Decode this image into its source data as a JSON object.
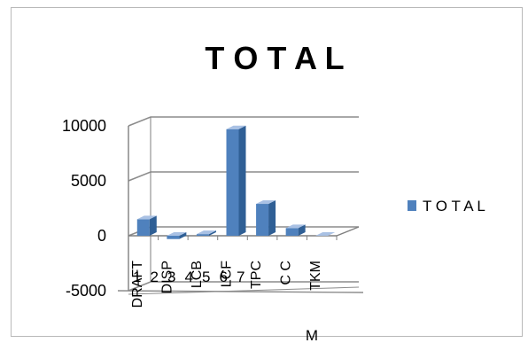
{
  "chart_data": {
    "type": "bar",
    "title": "T O T A L",
    "xlabel": "M",
    "ylabel": "",
    "ylim": [
      -5000,
      10000
    ],
    "yticks": [
      10000,
      5000,
      0,
      -5000
    ],
    "index_labels": [
      "1",
      "2",
      "3",
      "4",
      "5",
      "6",
      "7"
    ],
    "categories": [
      "DRAFT",
      "DISP",
      "LCB",
      "LCF",
      "TPC",
      "C C",
      "TKM"
    ],
    "series": [
      {
        "name": "T O T A L",
        "values": [
          1500,
          -300,
          150,
          9700,
          2900,
          700,
          0
        ]
      }
    ],
    "grid": true,
    "legend_position": "right",
    "colors": {
      "bar_front": "#4f81bd",
      "bar_side": "#2f5f95",
      "bar_top": "#a9c1e4",
      "grid": "#8c8c8c",
      "axis": "#7f7f7f"
    }
  }
}
